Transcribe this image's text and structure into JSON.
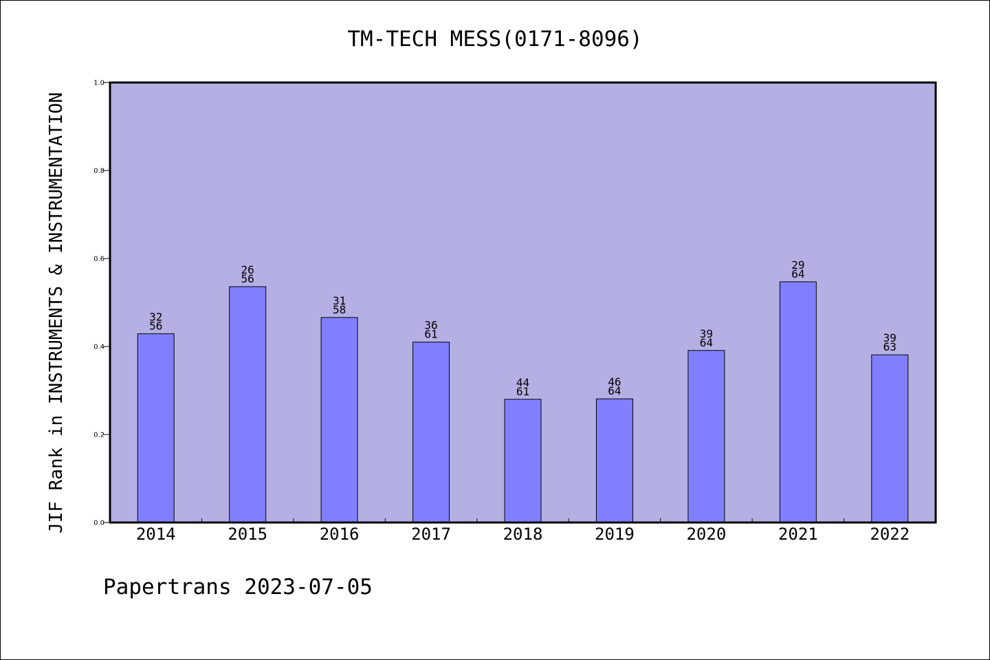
{
  "chart_data": {
    "type": "bar",
    "title": "TM-TECH MESS(0171-8096)",
    "xlabel": "",
    "ylabel": "JIF Rank in INSTRUMENTS & INSTRUMENTATION",
    "categories": [
      "2014",
      "2015",
      "2016",
      "2017",
      "2018",
      "2019",
      "2020",
      "2021",
      "2022"
    ],
    "values": [
      0.429,
      0.536,
      0.466,
      0.41,
      0.28,
      0.281,
      0.391,
      0.547,
      0.381
    ],
    "bar_labels": [
      [
        "32",
        "56"
      ],
      [
        "26",
        "56"
      ],
      [
        "31",
        "58"
      ],
      [
        "36",
        "61"
      ],
      [
        "44",
        "61"
      ],
      [
        "46",
        "64"
      ],
      [
        "39",
        "64"
      ],
      [
        "29",
        "64"
      ],
      [
        "39",
        "63"
      ]
    ],
    "ylim": [
      0,
      1.0
    ],
    "yticks": [
      "0.0",
      "0.2",
      "0.4",
      "0.6",
      "0.8",
      "1.0"
    ],
    "grid": false,
    "colors": {
      "plot_background": "#b5b0e3",
      "bar_fill": "#8080ff",
      "bar_edge": "#000000"
    }
  },
  "footer": "Papertrans 2023-07-05"
}
